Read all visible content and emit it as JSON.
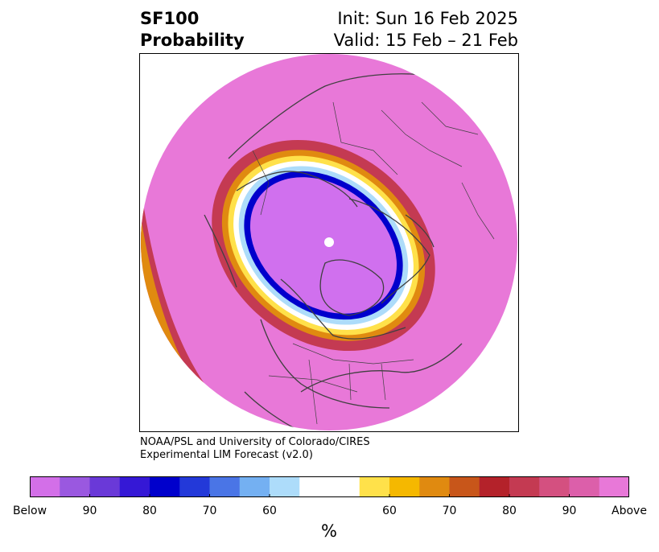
{
  "title": {
    "variable": "SF100",
    "product": "Probability",
    "init": "Init: Sun 16 Feb 2025",
    "valid": "Valid: 15 Feb – 21 Feb"
  },
  "credit": {
    "line1": "NOAA/PSL and University of Colorado/CIRES",
    "line2": "Experimental LIM Forecast (v2.0)"
  },
  "colorbar": {
    "unit": "%",
    "tick_labels": [
      "Below",
      "90",
      "80",
      "70",
      "60",
      "60",
      "70",
      "80",
      "90",
      "Above"
    ],
    "colors": [
      "#d36fe8",
      "#9a58e0",
      "#6a39d8",
      "#3518d6",
      "#0000cc",
      "#2339d9",
      "#4a75e6",
      "#74b0f2",
      "#addcfa",
      "#ffffff",
      "#ffe14a",
      "#f5b800",
      "#e08a10",
      "#c8561a",
      "#b4222a",
      "#c43a52",
      "#d45080",
      "#dc5faa",
      "#e878d8"
    ]
  },
  "map": {
    "projection": "polar-stereographic-north",
    "field_colors": {
      "outer": "#e878d8",
      "ring_red": "#c43a52",
      "ring_orange": "#e08a10",
      "ring_yellow": "#ffe14a",
      "ring_white": "#ffffff",
      "ring_lightblue": "#addcfa",
      "ring_blue": "#0000cc",
      "inner": "#d070ee"
    },
    "coastline_color": "#404040"
  }
}
